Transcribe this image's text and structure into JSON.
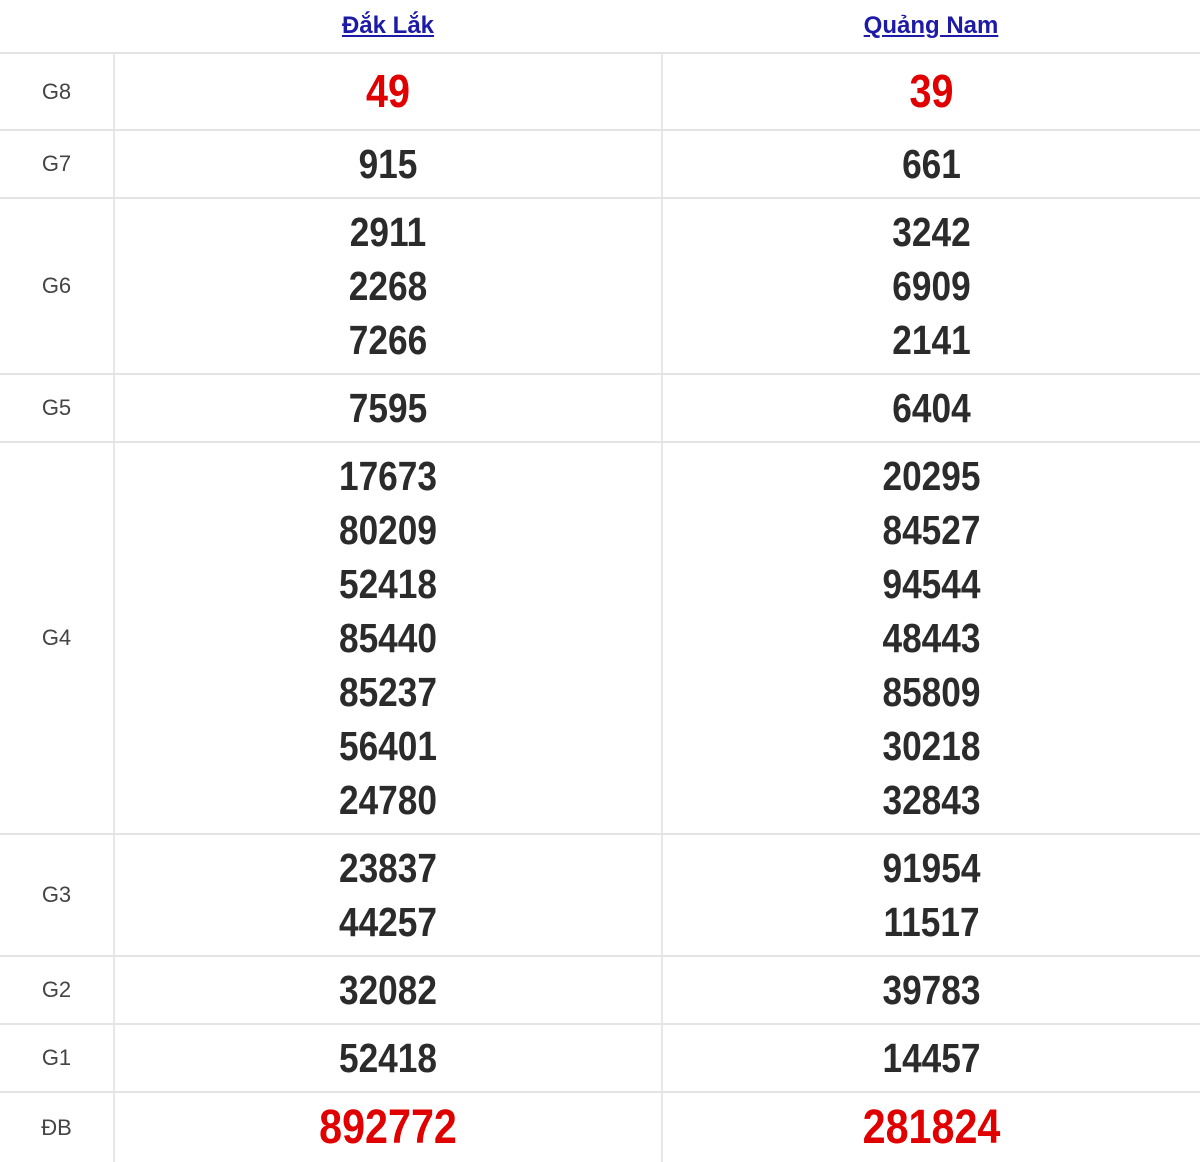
{
  "provinces": [
    "Đắk Lắk",
    "Quảng Nam"
  ],
  "colors": {
    "highlight": "#e00000",
    "link": "#1d1aa6",
    "text": "#2b2b2b"
  },
  "rows": [
    {
      "label": "G8",
      "highlight": true,
      "values": [
        [
          "49"
        ],
        [
          "39"
        ]
      ]
    },
    {
      "label": "G7",
      "highlight": false,
      "values": [
        [
          "915"
        ],
        [
          "661"
        ]
      ]
    },
    {
      "label": "G6",
      "highlight": false,
      "values": [
        [
          "2911",
          "2268",
          "7266"
        ],
        [
          "3242",
          "6909",
          "2141"
        ]
      ]
    },
    {
      "label": "G5",
      "highlight": false,
      "values": [
        [
          "7595"
        ],
        [
          "6404"
        ]
      ]
    },
    {
      "label": "G4",
      "highlight": false,
      "values": [
        [
          "17673",
          "80209",
          "52418",
          "85440",
          "85237",
          "56401",
          "24780"
        ],
        [
          "20295",
          "84527",
          "94544",
          "48443",
          "85809",
          "30218",
          "32843"
        ]
      ]
    },
    {
      "label": "G3",
      "highlight": false,
      "values": [
        [
          "23837",
          "44257"
        ],
        [
          "91954",
          "11517"
        ]
      ]
    },
    {
      "label": "G2",
      "highlight": false,
      "values": [
        [
          "32082"
        ],
        [
          "39783"
        ]
      ]
    },
    {
      "label": "G1",
      "highlight": false,
      "values": [
        [
          "52418"
        ],
        [
          "14457"
        ]
      ]
    },
    {
      "label": "ĐB",
      "highlight": true,
      "values": [
        [
          "892772"
        ],
        [
          "281824"
        ]
      ]
    }
  ]
}
